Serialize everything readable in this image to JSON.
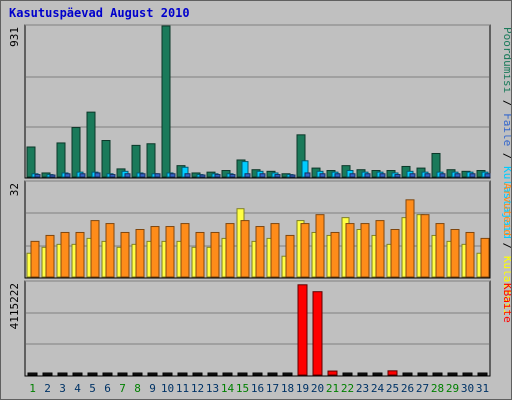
{
  "title": "Kasutuspäevad August 2010",
  "colors": {
    "background": "#c0c0c0",
    "title": "#0000cc",
    "weekday_label": "#003366",
    "weekend_label": "#008000",
    "visits": "#1a7a5a",
    "pages": "#00ccff",
    "files": "#3366cc",
    "hits": "#00ccff",
    "kbytes": "#ff0000",
    "kilo_hits_bar": "#ffff44",
    "arvuteid_bar": "#ff8c1a"
  },
  "legend": {
    "top": [
      {
        "text": "Pöördumisi",
        "color": "#1a7a5a"
      },
      {
        "text": " / ",
        "color": "#000000"
      },
      {
        "text": "Faile",
        "color": "#3366cc"
      },
      {
        "text": " / ",
        "color": "#000000"
      },
      {
        "text": "Külastajaid",
        "color": "#00ccff"
      }
    ],
    "middle": [
      {
        "text": "Arvuteid",
        "color": "#ff8c1a"
      },
      {
        "text": " / ",
        "color": "#000000"
      },
      {
        "text": "Külastusi",
        "color": "#ffff00"
      }
    ],
    "bottom": [
      {
        "text": "KBaite",
        "color": "#ff0000"
      }
    ]
  },
  "chart_data": {
    "type": "bar",
    "days": [
      "1",
      "2",
      "3",
      "4",
      "5",
      "6",
      "7",
      "8",
      "9",
      "10",
      "11",
      "12",
      "13",
      "14",
      "15",
      "16",
      "17",
      "18",
      "19",
      "20",
      "21",
      "22",
      "23",
      "24",
      "25",
      "26",
      "27",
      "28",
      "29",
      "30",
      "31"
    ],
    "weekend_days": [
      "1",
      "7",
      "8",
      "14",
      "15",
      "21",
      "22",
      "28",
      "29"
    ],
    "panels": [
      {
        "id": "top",
        "ymax_label": "931",
        "ymax": 931,
        "series": [
          {
            "name": "Pöördumisi",
            "color": "#1a7a5a",
            "values": [
              185,
              25,
              210,
              305,
              400,
              225,
              50,
              195,
              205,
              931,
              70,
              25,
              30,
              40,
              105,
              45,
              35,
              20,
              260,
              55,
              40,
              70,
              45,
              40,
              40,
              65,
              55,
              145,
              45,
              35,
              40
            ]
          },
          {
            "name": "Külastajaid",
            "color": "#00ccff",
            "values": [
              20,
              15,
              25,
              30,
              30,
              20,
              35,
              25,
              20,
              25,
              60,
              15,
              20,
              20,
              95,
              35,
              25,
              15,
              100,
              35,
              30,
              40,
              30,
              30,
              25,
              35,
              30,
              30,
              30,
              30,
              30
            ]
          },
          {
            "name": "Faile",
            "color": "#3366cc",
            "values": [
              15,
              10,
              20,
              20,
              25,
              15,
              20,
              20,
              20,
              20,
              20,
              10,
              15,
              15,
              20,
              20,
              15,
              10,
              25,
              20,
              20,
              20,
              20,
              20,
              15,
              20,
              20,
              20,
              20,
              20,
              20
            ]
          }
        ]
      },
      {
        "id": "middle",
        "ymax_label": "32",
        "ymax": 32,
        "series": [
          {
            "name": "Külastusi",
            "color": "#ffff44",
            "values": [
              8,
              10,
              11,
              11,
              13,
              12,
              10,
              11,
              12,
              12,
              12,
              10,
              10,
              13,
              23,
              12,
              13,
              7,
              19,
              15,
              14,
              20,
              16,
              14,
              11,
              20,
              21,
              14,
              12,
              11,
              8
            ]
          },
          {
            "name": "Arvuteid",
            "color": "#ff8c1a",
            "values": [
              12,
              14,
              15,
              15,
              19,
              18,
              15,
              16,
              17,
              17,
              18,
              15,
              15,
              18,
              19,
              17,
              18,
              14,
              18,
              21,
              15,
              18,
              18,
              19,
              16,
              26,
              21,
              18,
              16,
              15,
              13
            ]
          }
        ]
      },
      {
        "id": "bottom",
        "ymax_label": "4115222",
        "ymax": 4115222,
        "series": [
          {
            "name": "KBaite",
            "color": "#ff0000",
            "values": [
              15000,
              15000,
              15000,
              15000,
              15000,
              15000,
              15000,
              15000,
              15000,
              15000,
              15000,
              15000,
              15000,
              15000,
              15000,
              15000,
              15000,
              15000,
              4115222,
              3800000,
              180000,
              15000,
              15000,
              15000,
              190000,
              15000,
              15000,
              15000,
              15000,
              15000,
              15000
            ]
          }
        ]
      }
    ]
  }
}
